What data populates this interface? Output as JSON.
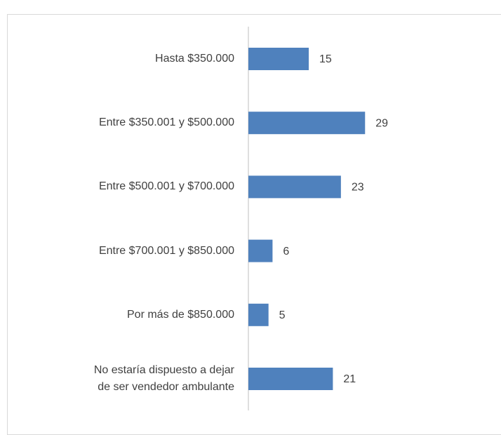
{
  "chart_data": {
    "type": "bar",
    "orientation": "horizontal",
    "categories": [
      "Hasta $350.000",
      "Entre $350.001 y $500.000",
      "Entre $500.001 y $700.000",
      "Entre $700.001 y $850.000",
      "Por más de $850.000",
      "No estaría dispuesto a dejar de ser vendedor ambulante"
    ],
    "values": [
      15,
      29,
      23,
      6,
      5,
      21
    ],
    "color": "#4f81bd",
    "xlim": [
      0,
      60
    ]
  }
}
